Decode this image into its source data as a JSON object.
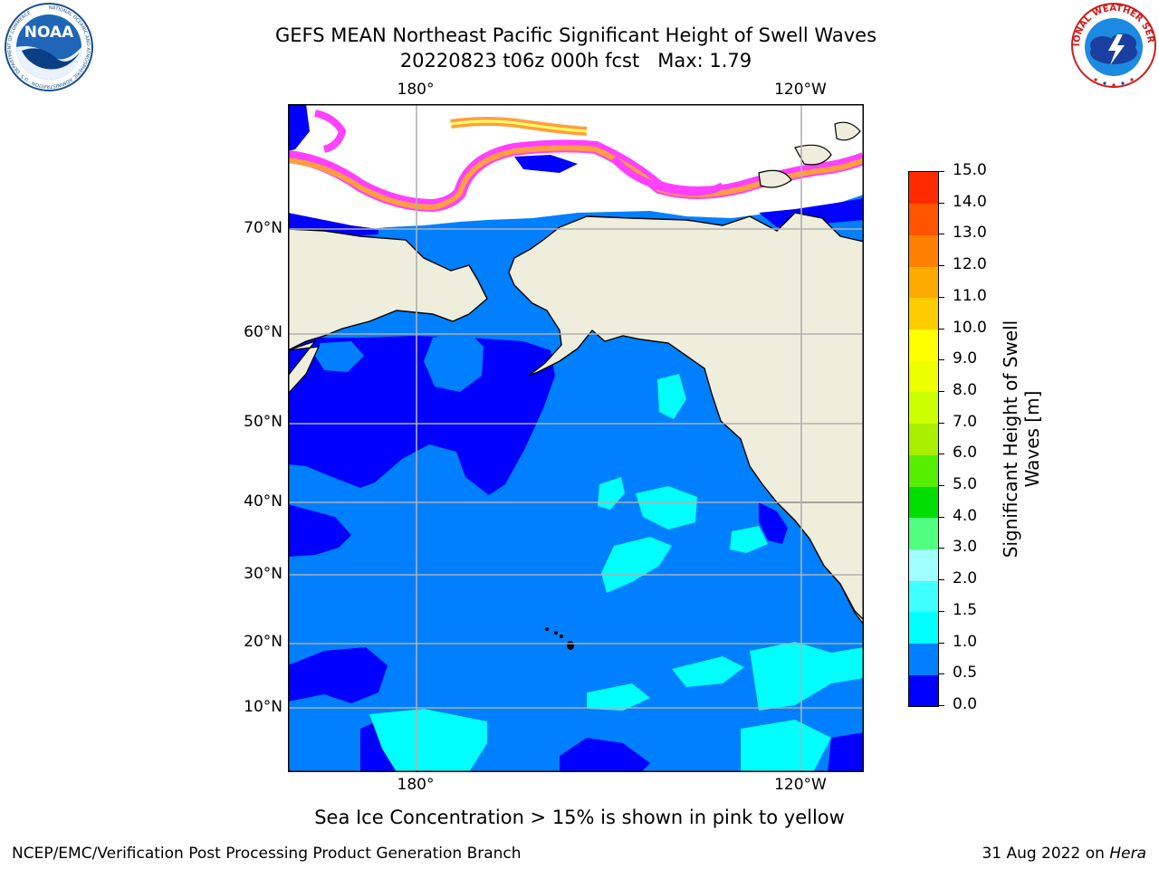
{
  "header": {
    "title_line1": "GEFS MEAN Northeast Pacific Significant Height of Swell Waves",
    "title_line2": "20220823 t06z 000h fcst   Max: 1.79"
  },
  "logos": {
    "left": "NOAA",
    "left_ring_text": "NATIONAL OCEANIC AND ATMOSPHERIC ADMINISTRATION · U.S. DEPARTMENT OF COMMERCE",
    "right_ring_text": "NATIONAL WEATHER SERVICE"
  },
  "map": {
    "lon_labels": [
      "180°",
      "120°W"
    ],
    "lat_labels": [
      "70°N",
      "60°N",
      "50°N",
      "40°N",
      "30°N",
      "20°N",
      "10°N"
    ],
    "colors": {
      "land": "#efeedc",
      "ocean_low": "#0000ff",
      "ocean_mid": "#0080ff",
      "ocean_high": "#00ffff",
      "ice_pink": "#ff40ff",
      "ice_orange": "#ff9f40",
      "ice_yellow": "#ffff66",
      "grid": "#b0b0b0"
    }
  },
  "colorbar": {
    "label_line1": "Significant Height of Swell",
    "label_line2": "Waves [m]",
    "ticks": [
      "0.0",
      "0.5",
      "1.0",
      "1.5",
      "2.0",
      "3.0",
      "4.0",
      "5.0",
      "6.0",
      "7.0",
      "8.0",
      "9.0",
      "10.0",
      "11.0",
      "12.0",
      "13.0",
      "14.0",
      "15.0"
    ],
    "colors": [
      "#0000ff",
      "#0080ff",
      "#00ffff",
      "#40ffff",
      "#a0ffff",
      "#50ff80",
      "#00dd00",
      "#55ee00",
      "#aaee00",
      "#ccff00",
      "#eeff00",
      "#ffff00",
      "#ffcc00",
      "#ffaa00",
      "#ff8000",
      "#ff5500",
      "#ff2a00",
      "#ff0000"
    ]
  },
  "footer": {
    "subtitle": "Sea Ice Concentration > 15% is shown in pink to yellow",
    "credit_left": "NCEP/EMC/Verification Post Processing Product Generation Branch",
    "credit_date": "31 Aug 2022 on ",
    "credit_machine": "Hera"
  }
}
